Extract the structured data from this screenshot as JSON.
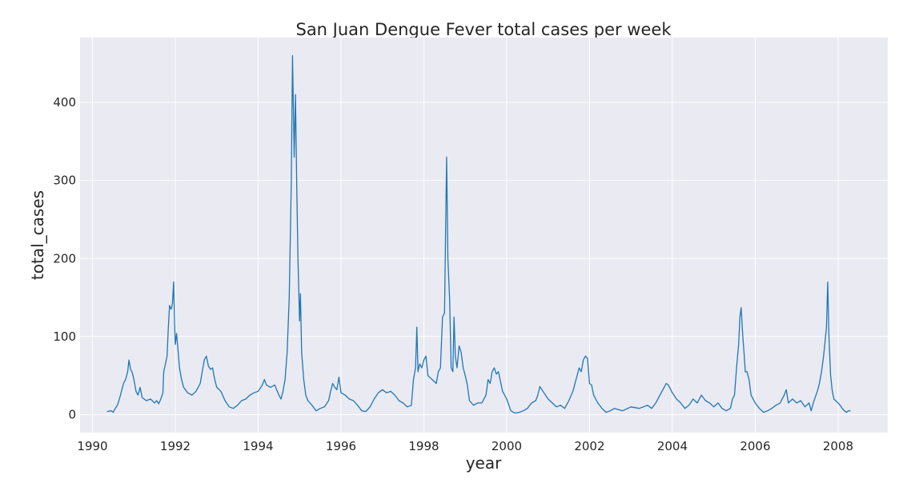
{
  "chart_data": {
    "type": "line",
    "title": "San Juan Dengue Fever total cases per week",
    "xlabel": "year",
    "ylabel": "total_cases",
    "xlim": [
      1989.7,
      2009.2
    ],
    "ylim": [
      -23,
      483
    ],
    "x_ticks": [
      1990,
      1992,
      1994,
      1996,
      1998,
      2000,
      2002,
      2004,
      2006,
      2008
    ],
    "y_ticks": [
      0,
      100,
      200,
      300,
      400
    ],
    "grid": true,
    "legend": "none",
    "colors": {
      "background": "#eaeaf2",
      "grid": "#ffffff",
      "line": "#1f77b4",
      "text": "#262626"
    },
    "series": [
      {
        "values": [
          [
            1990.35,
            4
          ],
          [
            1990.45,
            5
          ],
          [
            1990.5,
            3
          ],
          [
            1990.55,
            8
          ],
          [
            1990.6,
            12
          ],
          [
            1990.65,
            20
          ],
          [
            1990.7,
            30
          ],
          [
            1990.75,
            40
          ],
          [
            1990.8,
            45
          ],
          [
            1990.85,
            55
          ],
          [
            1990.88,
            70
          ],
          [
            1990.92,
            58
          ],
          [
            1990.96,
            54
          ],
          [
            1991.0,
            45
          ],
          [
            1991.05,
            30
          ],
          [
            1991.1,
            25
          ],
          [
            1991.15,
            35
          ],
          [
            1991.2,
            22
          ],
          [
            1991.3,
            18
          ],
          [
            1991.4,
            20
          ],
          [
            1991.5,
            15
          ],
          [
            1991.55,
            18
          ],
          [
            1991.6,
            14
          ],
          [
            1991.65,
            20
          ],
          [
            1991.7,
            28
          ],
          [
            1991.72,
            55
          ],
          [
            1991.75,
            62
          ],
          [
            1991.8,
            75
          ],
          [
            1991.83,
            110
          ],
          [
            1991.86,
            140
          ],
          [
            1991.9,
            135
          ],
          [
            1991.93,
            142
          ],
          [
            1991.96,
            170
          ],
          [
            1991.98,
            120
          ],
          [
            1992.0,
            90
          ],
          [
            1992.03,
            104
          ],
          [
            1992.07,
            80
          ],
          [
            1992.1,
            60
          ],
          [
            1992.15,
            45
          ],
          [
            1992.2,
            35
          ],
          [
            1992.3,
            28
          ],
          [
            1992.4,
            25
          ],
          [
            1992.5,
            30
          ],
          [
            1992.6,
            40
          ],
          [
            1992.65,
            55
          ],
          [
            1992.7,
            70
          ],
          [
            1992.75,
            75
          ],
          [
            1992.8,
            62
          ],
          [
            1992.85,
            58
          ],
          [
            1992.9,
            60
          ],
          [
            1992.95,
            45
          ],
          [
            1993.0,
            35
          ],
          [
            1993.1,
            30
          ],
          [
            1993.2,
            18
          ],
          [
            1993.3,
            10
          ],
          [
            1993.4,
            8
          ],
          [
            1993.5,
            12
          ],
          [
            1993.6,
            18
          ],
          [
            1993.7,
            20
          ],
          [
            1993.8,
            25
          ],
          [
            1993.9,
            28
          ],
          [
            1994.0,
            30
          ],
          [
            1994.1,
            38
          ],
          [
            1994.15,
            45
          ],
          [
            1994.2,
            38
          ],
          [
            1994.3,
            35
          ],
          [
            1994.4,
            38
          ],
          [
            1994.5,
            25
          ],
          [
            1994.55,
            20
          ],
          [
            1994.6,
            30
          ],
          [
            1994.65,
            45
          ],
          [
            1994.7,
            80
          ],
          [
            1994.75,
            150
          ],
          [
            1994.8,
            300
          ],
          [
            1994.83,
            460
          ],
          [
            1994.87,
            330
          ],
          [
            1994.9,
            410
          ],
          [
            1994.93,
            300
          ],
          [
            1994.96,
            200
          ],
          [
            1995.0,
            120
          ],
          [
            1995.02,
            155
          ],
          [
            1995.05,
            80
          ],
          [
            1995.1,
            45
          ],
          [
            1995.15,
            25
          ],
          [
            1995.2,
            18
          ],
          [
            1995.3,
            12
          ],
          [
            1995.4,
            5
          ],
          [
            1995.5,
            8
          ],
          [
            1995.6,
            10
          ],
          [
            1995.7,
            18
          ],
          [
            1995.75,
            30
          ],
          [
            1995.8,
            40
          ],
          [
            1995.85,
            35
          ],
          [
            1995.9,
            32
          ],
          [
            1995.95,
            48
          ],
          [
            1996.0,
            28
          ],
          [
            1996.1,
            25
          ],
          [
            1996.2,
            20
          ],
          [
            1996.3,
            18
          ],
          [
            1996.4,
            12
          ],
          [
            1996.5,
            5
          ],
          [
            1996.6,
            4
          ],
          [
            1996.7,
            10
          ],
          [
            1996.8,
            20
          ],
          [
            1996.9,
            28
          ],
          [
            1997.0,
            32
          ],
          [
            1997.1,
            28
          ],
          [
            1997.2,
            30
          ],
          [
            1997.3,
            25
          ],
          [
            1997.4,
            18
          ],
          [
            1997.5,
            15
          ],
          [
            1997.6,
            10
          ],
          [
            1997.7,
            12
          ],
          [
            1997.75,
            45
          ],
          [
            1997.8,
            60
          ],
          [
            1997.83,
            112
          ],
          [
            1997.86,
            55
          ],
          [
            1997.9,
            65
          ],
          [
            1997.95,
            60
          ],
          [
            1998.0,
            70
          ],
          [
            1998.05,
            75
          ],
          [
            1998.1,
            50
          ],
          [
            1998.2,
            45
          ],
          [
            1998.3,
            40
          ],
          [
            1998.35,
            55
          ],
          [
            1998.4,
            60
          ],
          [
            1998.45,
            125
          ],
          [
            1998.5,
            130
          ],
          [
            1998.55,
            330
          ],
          [
            1998.58,
            200
          ],
          [
            1998.62,
            150
          ],
          [
            1998.66,
            60
          ],
          [
            1998.7,
            55
          ],
          [
            1998.73,
            125
          ],
          [
            1998.76,
            75
          ],
          [
            1998.8,
            60
          ],
          [
            1998.85,
            88
          ],
          [
            1998.9,
            80
          ],
          [
            1998.95,
            60
          ],
          [
            1999.0,
            50
          ],
          [
            1999.05,
            38
          ],
          [
            1999.1,
            18
          ],
          [
            1999.2,
            12
          ],
          [
            1999.3,
            15
          ],
          [
            1999.4,
            15
          ],
          [
            1999.5,
            25
          ],
          [
            1999.55,
            45
          ],
          [
            1999.6,
            40
          ],
          [
            1999.65,
            55
          ],
          [
            1999.7,
            60
          ],
          [
            1999.75,
            52
          ],
          [
            1999.8,
            55
          ],
          [
            1999.9,
            30
          ],
          [
            2000.0,
            20
          ],
          [
            2000.1,
            5
          ],
          [
            2000.2,
            2
          ],
          [
            2000.3,
            3
          ],
          [
            2000.4,
            5
          ],
          [
            2000.5,
            8
          ],
          [
            2000.6,
            15
          ],
          [
            2000.7,
            18
          ],
          [
            2000.75,
            25
          ],
          [
            2000.8,
            36
          ],
          [
            2000.9,
            28
          ],
          [
            2001.0,
            20
          ],
          [
            2001.1,
            15
          ],
          [
            2001.2,
            10
          ],
          [
            2001.3,
            12
          ],
          [
            2001.4,
            8
          ],
          [
            2001.5,
            18
          ],
          [
            2001.6,
            30
          ],
          [
            2001.7,
            50
          ],
          [
            2001.75,
            60
          ],
          [
            2001.8,
            55
          ],
          [
            2001.85,
            70
          ],
          [
            2001.9,
            75
          ],
          [
            2001.95,
            72
          ],
          [
            2002.0,
            40
          ],
          [
            2002.05,
            38
          ],
          [
            2002.1,
            25
          ],
          [
            2002.2,
            15
          ],
          [
            2002.3,
            8
          ],
          [
            2002.4,
            3
          ],
          [
            2002.5,
            5
          ],
          [
            2002.6,
            8
          ],
          [
            2002.8,
            5
          ],
          [
            2003.0,
            10
          ],
          [
            2003.2,
            8
          ],
          [
            2003.4,
            12
          ],
          [
            2003.5,
            8
          ],
          [
            2003.6,
            15
          ],
          [
            2003.7,
            25
          ],
          [
            2003.8,
            35
          ],
          [
            2003.85,
            40
          ],
          [
            2003.9,
            38
          ],
          [
            2004.0,
            28
          ],
          [
            2004.1,
            20
          ],
          [
            2004.2,
            15
          ],
          [
            2004.3,
            8
          ],
          [
            2004.4,
            12
          ],
          [
            2004.5,
            20
          ],
          [
            2004.6,
            15
          ],
          [
            2004.7,
            25
          ],
          [
            2004.8,
            18
          ],
          [
            2004.9,
            15
          ],
          [
            2005.0,
            10
          ],
          [
            2005.1,
            15
          ],
          [
            2005.2,
            8
          ],
          [
            2005.3,
            5
          ],
          [
            2005.4,
            8
          ],
          [
            2005.45,
            20
          ],
          [
            2005.5,
            25
          ],
          [
            2005.55,
            60
          ],
          [
            2005.6,
            90
          ],
          [
            2005.63,
            125
          ],
          [
            2005.66,
            137
          ],
          [
            2005.7,
            100
          ],
          [
            2005.73,
            80
          ],
          [
            2005.76,
            55
          ],
          [
            2005.8,
            55
          ],
          [
            2005.85,
            45
          ],
          [
            2005.9,
            25
          ],
          [
            2006.0,
            15
          ],
          [
            2006.1,
            8
          ],
          [
            2006.2,
            3
          ],
          [
            2006.3,
            5
          ],
          [
            2006.4,
            8
          ],
          [
            2006.5,
            12
          ],
          [
            2006.6,
            15
          ],
          [
            2006.7,
            25
          ],
          [
            2006.75,
            32
          ],
          [
            2006.8,
            15
          ],
          [
            2006.9,
            20
          ],
          [
            2007.0,
            15
          ],
          [
            2007.1,
            18
          ],
          [
            2007.2,
            10
          ],
          [
            2007.3,
            15
          ],
          [
            2007.35,
            5
          ],
          [
            2007.4,
            15
          ],
          [
            2007.5,
            30
          ],
          [
            2007.55,
            40
          ],
          [
            2007.6,
            55
          ],
          [
            2007.65,
            75
          ],
          [
            2007.68,
            90
          ],
          [
            2007.72,
            112
          ],
          [
            2007.75,
            170
          ],
          [
            2007.78,
            100
          ],
          [
            2007.82,
            50
          ],
          [
            2007.86,
            30
          ],
          [
            2007.9,
            20
          ],
          [
            2008.0,
            15
          ],
          [
            2008.05,
            12
          ],
          [
            2008.1,
            8
          ],
          [
            2008.15,
            5
          ],
          [
            2008.2,
            3
          ],
          [
            2008.25,
            5
          ],
          [
            2008.3,
            5
          ]
        ]
      }
    ]
  }
}
